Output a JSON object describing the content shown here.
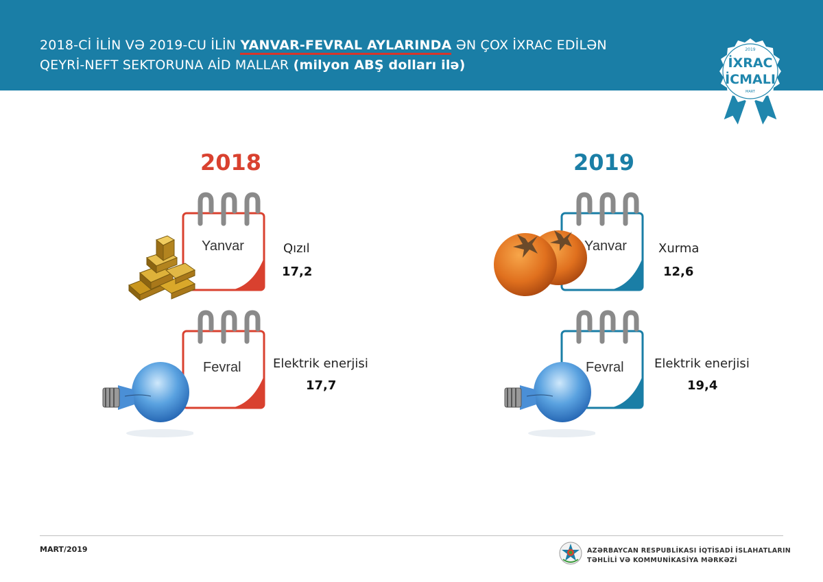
{
  "header": {
    "title_line1_a": "2018-Cİ İLİN VƏ 2019-CU İLİN ",
    "title_line1_highlight": "YANVAR-FEVRAL AYLARINDA",
    "title_line1_b": " ƏN ÇOX İXRAC EDİLƏN",
    "title_line2_a": "QEYRİ-NEFT SEKTORUNA AİD MALLAR ",
    "title_line2_bold": "(milyon ABŞ dolları ilə)"
  },
  "badge": {
    "year": "2019",
    "line1": "İXRAC",
    "line2": "İCMALI",
    "bottom": "MART"
  },
  "panels": [
    {
      "year": "2018",
      "accent": "#d9412f",
      "entries": [
        {
          "month": "Yanvar",
          "product": "Qızıl",
          "value": "17,2",
          "icon": "gold-bars"
        },
        {
          "month": "Fevral",
          "product": "Elektrik enerjisi",
          "value": "17,7",
          "icon": "light-bulb"
        }
      ]
    },
    {
      "year": "2019",
      "accent": "#1a7ea6",
      "entries": [
        {
          "month": "Yanvar",
          "product": "Xurma",
          "value": "12,6",
          "icon": "persimmon"
        },
        {
          "month": "Fevral",
          "product": "Elektrik enerjisi",
          "value": "19,4",
          "icon": "light-bulb"
        }
      ]
    }
  ],
  "footer": {
    "date": "MART/2019",
    "org_line1": "AZƏRBAYCAN RESPUBLİKASI İQTİSADİ İSLAHATLARIN",
    "org_line2": "TƏHLİLİ VƏ KOMMUNİKASİYA MƏRKƏZİ"
  }
}
